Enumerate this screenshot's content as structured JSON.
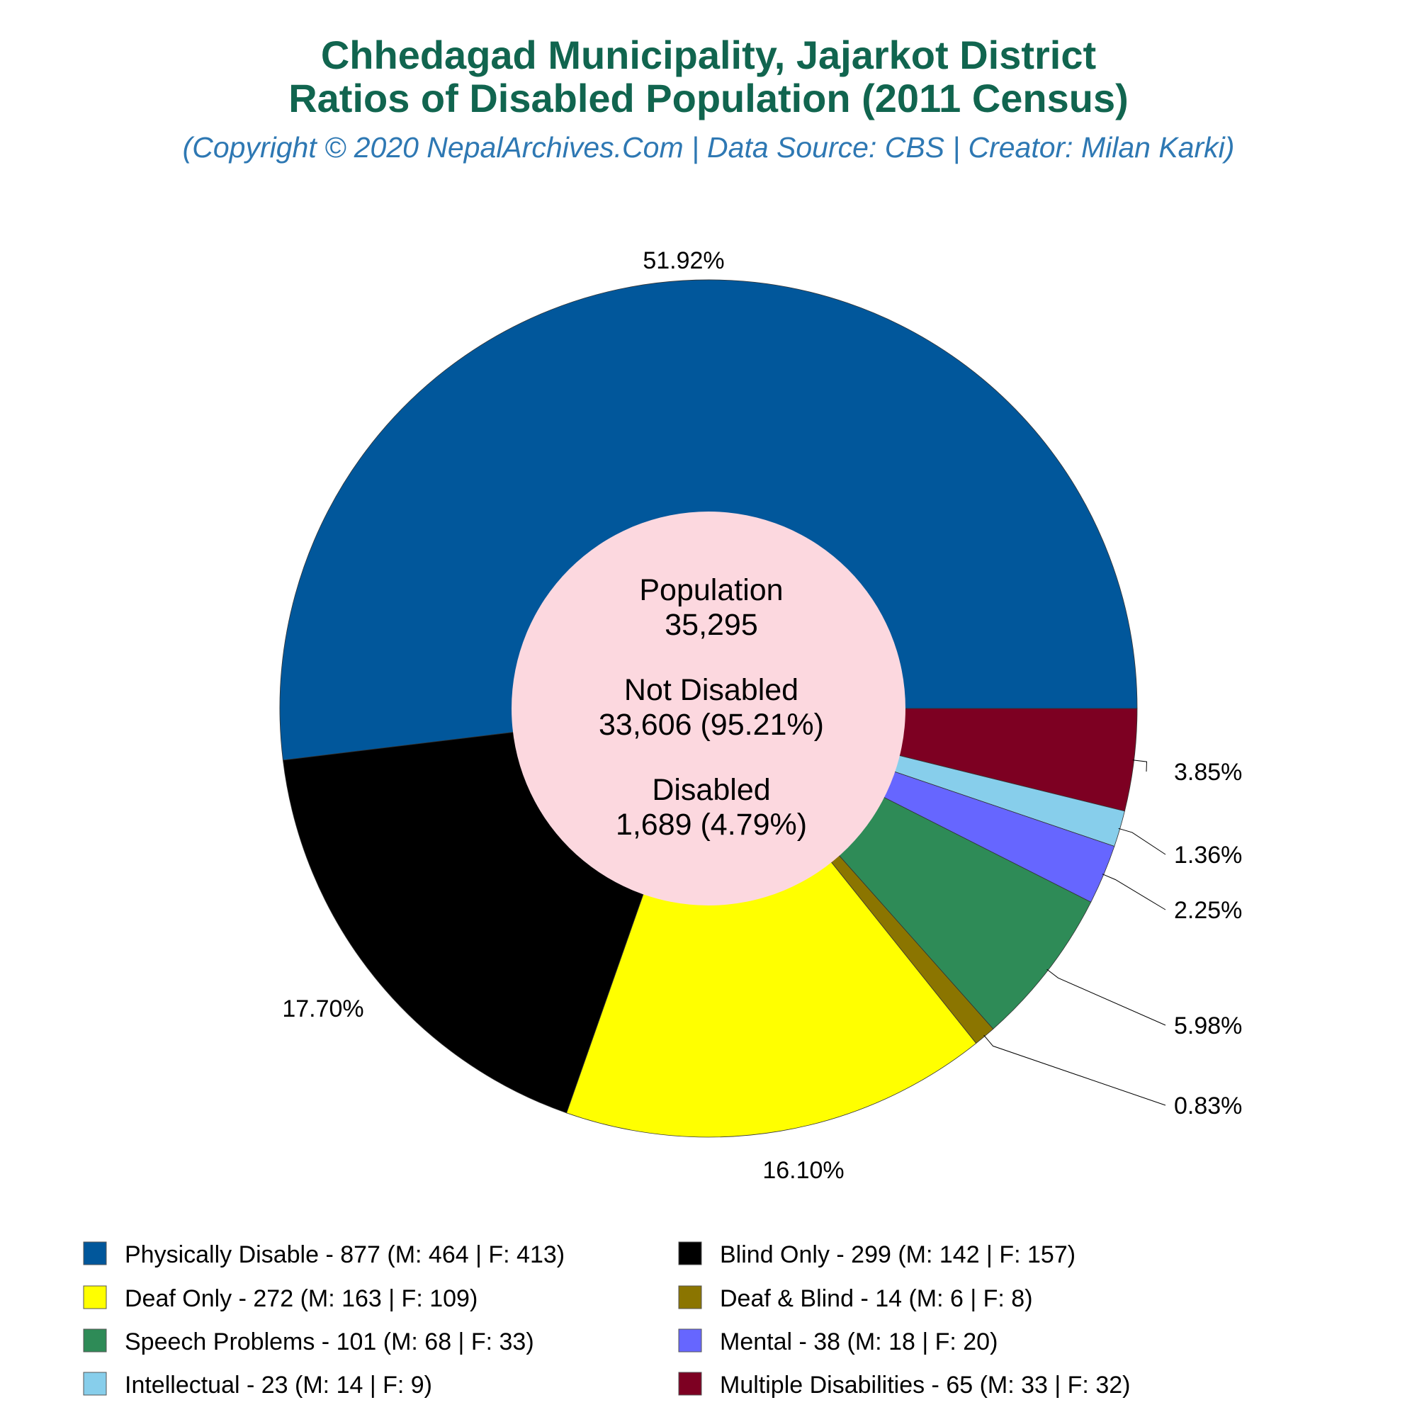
{
  "chart_data": {
    "type": "pie",
    "title_line1": "Chhedagad Municipality, Jajarkot District",
    "title_line2": "Ratios of Disabled Population (2011 Census)",
    "subtitle": "(Copyright © 2020 NepalArchives.Com | Data Source: CBS | Creator: Milan Karki)",
    "center": {
      "population_label": "Population",
      "population_value": "35,295",
      "not_disabled_label": "Not Disabled",
      "not_disabled_value": "33,606 (95.21%)",
      "disabled_label": "Disabled",
      "disabled_value": "1,689 (4.79%)"
    },
    "slices": [
      {
        "name": "Physically Disable",
        "value": 877,
        "percent_label": "51.92%",
        "color": "#01579b",
        "legend": "Physically Disable - 877 (M: 464 | F: 413)"
      },
      {
        "name": "Multiple Disabilities",
        "value": 65,
        "percent_label": "3.85%",
        "color": "#7d0022",
        "legend": "Multiple Disabilities - 65 (M: 33 | F: 32)"
      },
      {
        "name": "Intellectual",
        "value": 23,
        "percent_label": "1.36%",
        "color": "#87ceeb",
        "legend": "Intellectual - 23 (M: 14 | F: 9)"
      },
      {
        "name": "Mental",
        "value": 38,
        "percent_label": "2.25%",
        "color": "#6666ff",
        "legend": "Mental - 38 (M: 18 | F: 20)"
      },
      {
        "name": "Speech Problems",
        "value": 101,
        "percent_label": "5.98%",
        "color": "#2e8b57",
        "legend": "Speech Problems - 101 (M: 68 | F: 33)"
      },
      {
        "name": "Deaf & Blind",
        "value": 14,
        "percent_label": "0.83%",
        "color": "#8b7500",
        "legend": "Deaf & Blind - 14 (M: 6 | F: 8)"
      },
      {
        "name": "Deaf Only",
        "value": 272,
        "percent_label": "16.10%",
        "color": "#ffff00",
        "legend": "Deaf Only - 272 (M: 163 | F: 109)"
      },
      {
        "name": "Blind Only",
        "value": 299,
        "percent_label": "17.70%",
        "color": "#000000",
        "legend": "Blind Only - 299 (M: 142 | F: 157)"
      }
    ],
    "legend_order": [
      "Physically Disable",
      "Blind Only",
      "Deaf Only",
      "Deaf & Blind",
      "Speech Problems",
      "Mental",
      "Intellectual",
      "Multiple Disabilities"
    ],
    "hole_color": "#fcd8df"
  }
}
